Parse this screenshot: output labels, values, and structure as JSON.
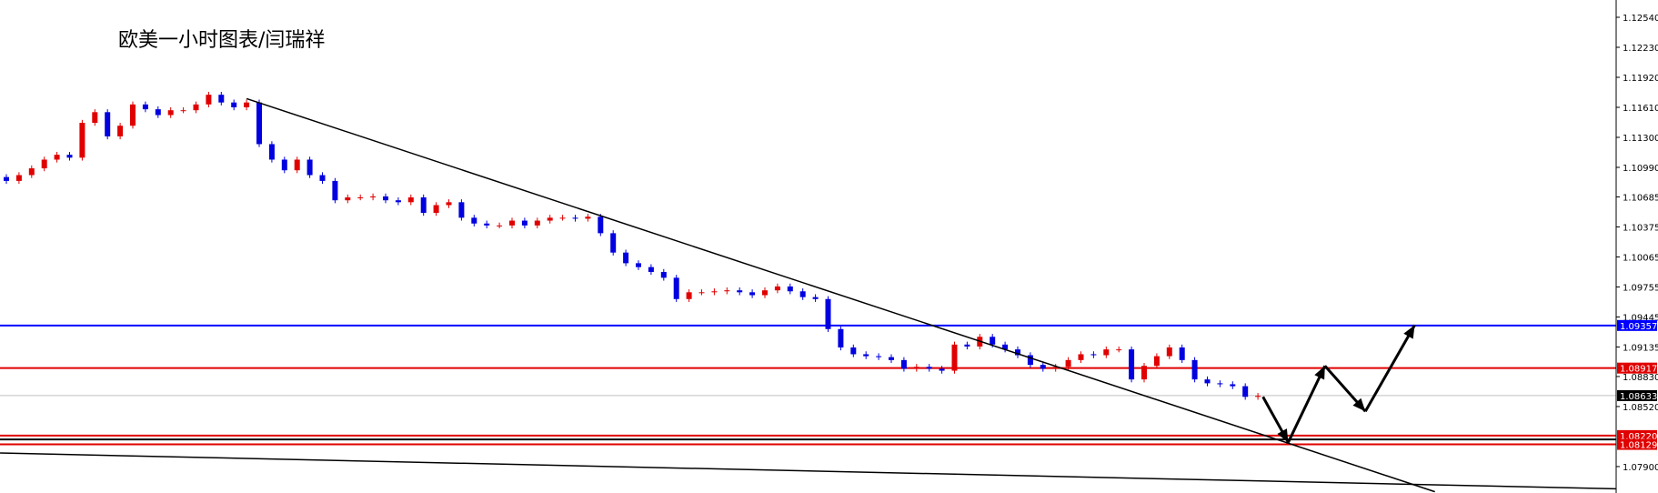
{
  "title": "欧美一小时图表/闫瑞祥",
  "chart_data": {
    "type": "candlestick",
    "title": "欧美一小时图表/闫瑞祥",
    "ylim": [
      1.077,
      1.1272
    ],
    "grid": false,
    "colors": {
      "up": "#e00000",
      "down": "#0000e0",
      "axis": "#000000"
    },
    "y_ticks": [
      "1.12540",
      "1.12230",
      "1.11920",
      "1.11610",
      "1.11300",
      "1.10990",
      "1.10685",
      "1.10375",
      "1.10065",
      "1.09755",
      "1.09445",
      "1.09135",
      "1.08830",
      "1.08520",
      "1.07900"
    ],
    "closes": [
      1.1085,
      1.1091,
      1.1098,
      1.1107,
      1.1112,
      1.1109,
      1.1145,
      1.1156,
      1.1131,
      1.1142,
      1.1164,
      1.1159,
      1.1153,
      1.1158,
      1.1158,
      1.1164,
      1.1174,
      1.1166,
      1.1161,
      1.1166,
      1.1123,
      1.1107,
      1.1096,
      1.1107,
      1.1091,
      1.1085,
      1.1065,
      1.1068,
      1.1068,
      1.1069,
      1.1065,
      1.1063,
      1.1068,
      1.1052,
      1.106,
      1.1063,
      1.1047,
      1.1041,
      1.1039,
      1.1039,
      1.1044,
      1.1039,
      1.1044,
      1.1047,
      1.1047,
      1.1046,
      1.1048,
      1.1031,
      1.1011,
      1.1,
      1.0996,
      1.0991,
      1.0985,
      1.0963,
      1.097,
      1.097,
      1.0971,
      1.0972,
      1.097,
      1.0967,
      1.0972,
      1.0976,
      1.0971,
      1.0965,
      1.0963,
      1.0932,
      1.0913,
      1.0906,
      1.0904,
      1.0903,
      1.09,
      1.0891,
      1.0893,
      1.0891,
      1.0889,
      1.0916,
      1.0914,
      1.0924,
      1.0916,
      1.0911,
      1.0905,
      1.0895,
      1.0891,
      1.0893,
      1.09,
      1.0906,
      1.0905,
      1.0911,
      1.0911,
      1.088,
      1.0894,
      1.0904,
      1.0913,
      1.09,
      1.088,
      1.0876,
      1.0875,
      1.0873,
      1.0862,
      1.0863
    ],
    "levels": [
      {
        "price": 1.09357,
        "label": "1.09357",
        "color": "#0000ff"
      },
      {
        "price": 1.08917,
        "label": "1.08917",
        "color": "#e00000"
      },
      {
        "price": 1.08633,
        "label": "1.08633",
        "color": "#000000",
        "line": "#c0c0c0"
      },
      {
        "price": 1.0822,
        "label": "1.08220",
        "color": "#e00000"
      },
      {
        "price": 1.0818,
        "label": "",
        "color": "#000000"
      },
      {
        "price": 1.08129,
        "label": "1.08129",
        "color": "#e00000"
      }
    ],
    "trendlines": [
      {
        "from": [
          19,
          1.117
        ],
        "to": [
          113,
          1.0764
        ]
      },
      {
        "from": [
          -0.5,
          1.0804
        ],
        "to": [
          127.3,
          1.0767
        ]
      }
    ],
    "projection_arrows": [
      [
        99.4,
        1.0862
      ],
      [
        101.4,
        1.0815
      ],
      [
        104.3,
        1.0894
      ],
      [
        107.5,
        1.0847
      ],
      [
        111.4,
        1.0936
      ]
    ]
  }
}
